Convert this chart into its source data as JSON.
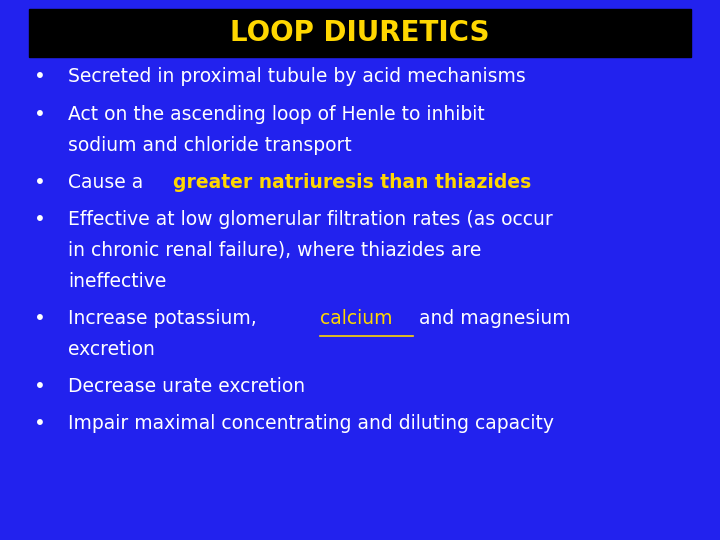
{
  "title": "LOOP DIURETICS",
  "title_color": "#FFD700",
  "title_bg_color": "#000000",
  "background_color": "#2222EE",
  "bullet_color": "#FFFFFF",
  "highlight_color": "#FFD700",
  "bullets": [
    {
      "parts": [
        {
          "text": "Secreted in proximal tubule by acid mechanisms",
          "color": "#FFFFFF",
          "bold": false,
          "underline": false
        }
      ]
    },
    {
      "parts": [
        {
          "text": "Act on the ascending loop of Henle to inhibit\nsodium and chloride transport",
          "color": "#FFFFFF",
          "bold": false,
          "underline": false
        }
      ]
    },
    {
      "parts": [
        {
          "text": "Cause a ",
          "color": "#FFFFFF",
          "bold": false,
          "underline": false
        },
        {
          "text": "greater natriuresis than thiazides",
          "color": "#FFD700",
          "bold": true,
          "underline": false
        }
      ]
    },
    {
      "parts": [
        {
          "text": "Effective at low glomerular filtration rates (as occur\nin chronic renal failure), where thiazides are\nineffective",
          "color": "#FFFFFF",
          "bold": false,
          "underline": false
        }
      ]
    },
    {
      "parts": [
        {
          "text": "Increase potassium, ",
          "color": "#FFFFFF",
          "bold": false,
          "underline": false
        },
        {
          "text": "calcium",
          "color": "#FFD700",
          "bold": false,
          "underline": true
        },
        {
          "text": " and magnesium\nexcretion",
          "color": "#FFFFFF",
          "bold": false,
          "underline": false
        }
      ]
    },
    {
      "parts": [
        {
          "text": "Decrease urate excretion",
          "color": "#FFFFFF",
          "bold": false,
          "underline": false
        }
      ]
    },
    {
      "parts": [
        {
          "text": "Impair maximal concentrating and diluting capacity",
          "color": "#FFFFFF",
          "bold": false,
          "underline": false
        }
      ]
    }
  ],
  "title_fontsize": 20,
  "bullet_fontsize": 13.5,
  "figsize": [
    7.2,
    5.4
  ],
  "dpi": 100
}
